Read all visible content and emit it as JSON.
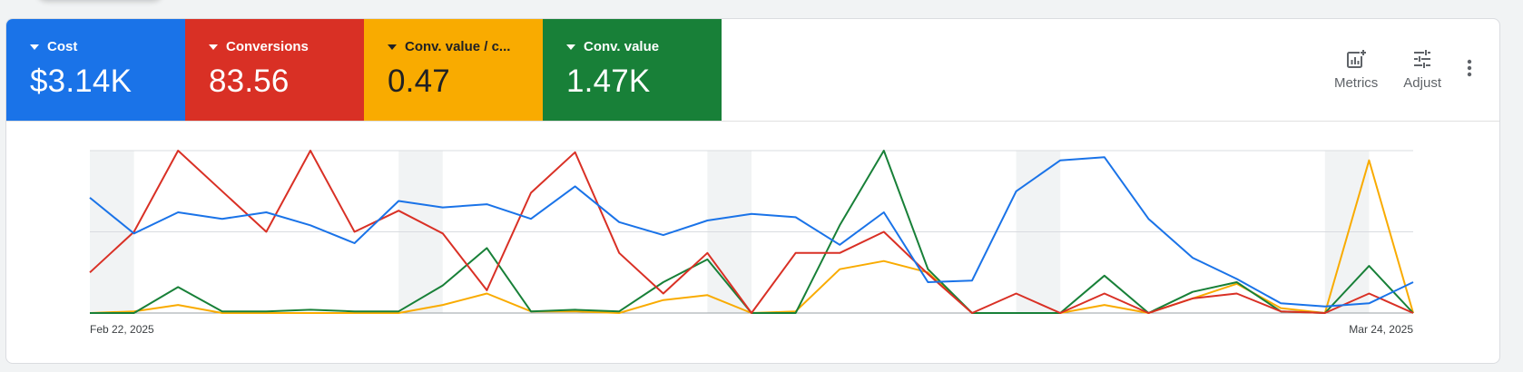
{
  "metrics": [
    {
      "label": "Cost",
      "value": "$3.14K",
      "color": "#1a73e8"
    },
    {
      "label": "Conversions",
      "value": "83.56",
      "color": "#d93025"
    },
    {
      "label": "Conv. value / c...",
      "value": "0.47",
      "color": "#f9ab00"
    },
    {
      "label": "Conv. value",
      "value": "1.47K",
      "color": "#188038"
    }
  ],
  "toolbar": {
    "metrics_label": "Metrics",
    "adjust_label": "Adjust",
    "more_icon": "more-vert-icon",
    "metrics_icon": "chart-add-icon",
    "adjust_icon": "tune-icon"
  },
  "chart_data": {
    "type": "line",
    "x_start_label": "Feb 22, 2025",
    "x_end_label": "Mar 24, 2025",
    "gridlines": true,
    "y_normalized_max": 100,
    "weekend_shading": true,
    "series": [
      {
        "name": "Cost",
        "color": "#1a73e8",
        "values": [
          71,
          49,
          62,
          58,
          62,
          54,
          43,
          69,
          65,
          67,
          58,
          78,
          56,
          48,
          57,
          61,
          59,
          42,
          62,
          19,
          20,
          75,
          94,
          96,
          58,
          34,
          21,
          6,
          4,
          6,
          19
        ]
      },
      {
        "name": "Conversions",
        "color": "#d93025",
        "values": [
          25,
          50,
          100,
          75,
          50,
          100,
          50,
          63,
          49,
          14,
          74,
          99,
          37,
          12,
          37,
          0,
          37,
          37,
          50,
          24,
          0,
          12,
          0,
          12,
          0,
          9,
          12,
          1,
          0,
          12,
          0
        ]
      },
      {
        "name": "Conv. value / c...",
        "color": "#f9ab00",
        "values": [
          0,
          1,
          5,
          0,
          0,
          0,
          0,
          0,
          5,
          12,
          1,
          1,
          0,
          8,
          11,
          0,
          1,
          27,
          32,
          25,
          0,
          0,
          0,
          5,
          0,
          9,
          18,
          3,
          0,
          94,
          0
        ]
      },
      {
        "name": "Conv. value",
        "color": "#188038",
        "values": [
          0,
          0,
          16,
          1,
          1,
          2,
          1,
          1,
          17,
          40,
          1,
          2,
          1,
          19,
          33,
          0,
          0,
          54,
          100,
          27,
          0,
          0,
          0,
          23,
          0,
          13,
          19,
          1,
          0,
          29,
          0
        ]
      }
    ]
  }
}
